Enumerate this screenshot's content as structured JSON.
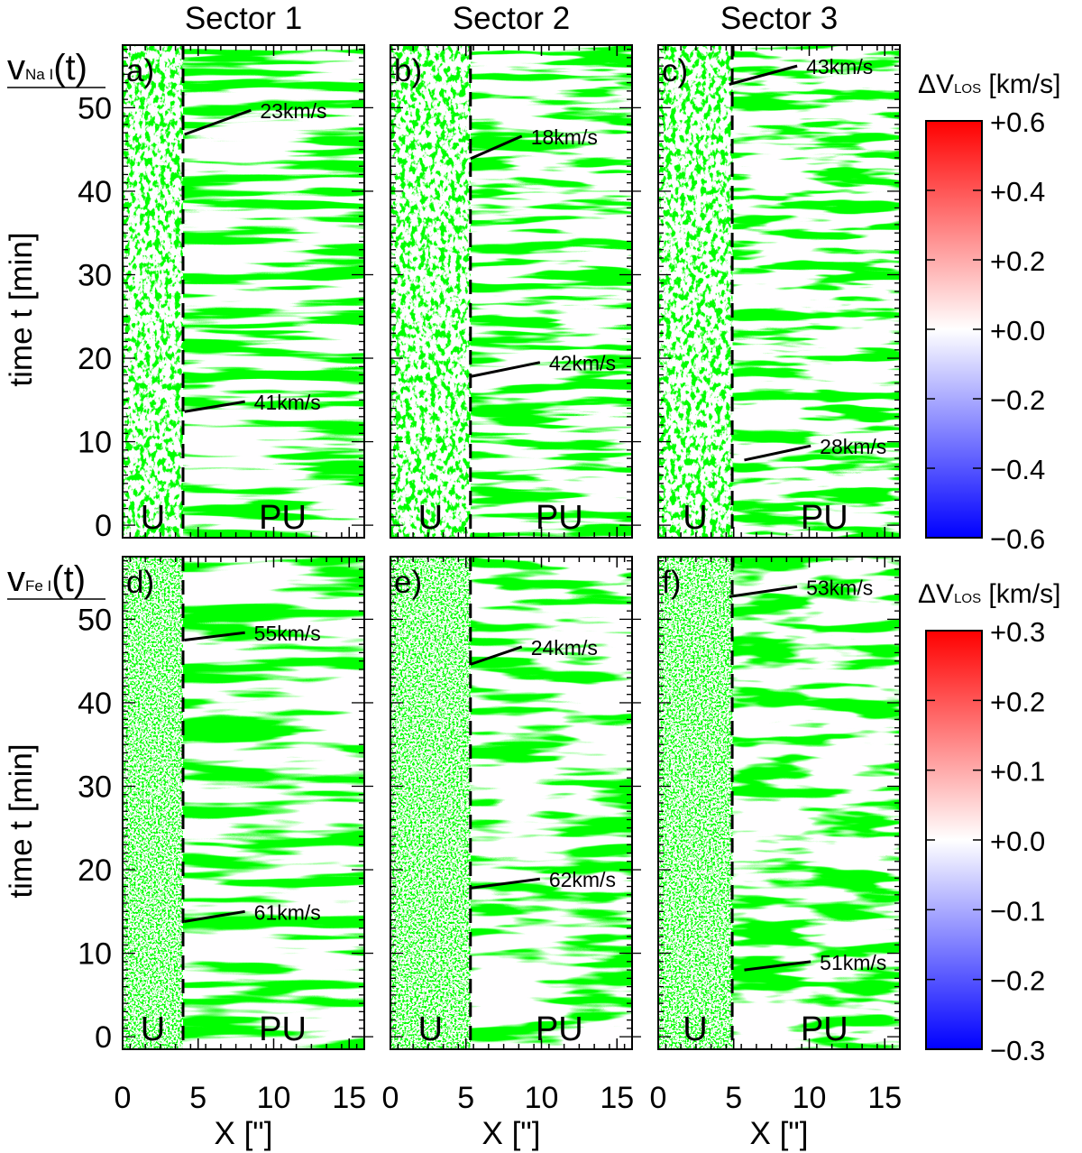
{
  "chart_data": {
    "type": "heatmap",
    "column_titles": [
      "Sector 1",
      "Sector 2",
      "Sector 3"
    ],
    "xlabel": "X [\"]",
    "ylabel": "time t [min]",
    "xlim": [
      0,
      16
    ],
    "ylim": [
      -1.5,
      57.5
    ],
    "x_ticks": [
      0,
      5,
      10,
      15
    ],
    "y_ticks": [
      0,
      10,
      20,
      30,
      40,
      50
    ],
    "region_labels": [
      "U",
      "PU"
    ],
    "rows": [
      {
        "row_label_main": "v",
        "row_label_sub": "Na I",
        "row_label_suffix": "(t)",
        "colorbar": {
          "title_prefix": "ΔV",
          "title_sub": "LOS",
          "title_suffix": " [km/s]",
          "range": [
            -0.6,
            0.6
          ],
          "tick_values": [
            0.6,
            0.4,
            0.2,
            0.0,
            -0.2,
            -0.4,
            -0.6
          ],
          "tick_labels": [
            "+0.6",
            "+0.4",
            "+0.2",
            "+0.0",
            "−0.2",
            "−0.4",
            "−0.6"
          ],
          "colors": [
            "#0000ff",
            "#ffffff",
            "#ff0000"
          ]
        },
        "panels": [
          {
            "letter": "a)",
            "boundary_x": 4.0,
            "annotations": [
              {
                "text": "23km/s",
                "x0": 4.1,
                "t0": 46.8,
                "x1": 8.5,
                "t1": 49.7
              },
              {
                "text": "41km/s",
                "x0": 4.1,
                "t0": 13.6,
                "x1": 8.1,
                "t1": 14.8
              }
            ]
          },
          {
            "letter": "b)",
            "boundary_x": 5.3,
            "annotations": [
              {
                "text": "18km/s",
                "x0": 5.3,
                "t0": 43.9,
                "x1": 8.7,
                "t1": 46.6
              },
              {
                "text": "42km/s",
                "x0": 5.3,
                "t0": 17.8,
                "x1": 9.9,
                "t1": 19.5
              }
            ]
          },
          {
            "letter": "c)",
            "boundary_x": 4.9,
            "annotations": [
              {
                "text": "43km/s",
                "x0": 4.7,
                "t0": 52.8,
                "x1": 9.2,
                "t1": 55.0
              },
              {
                "text": "28km/s",
                "x0": 5.7,
                "t0": 7.8,
                "x1": 10.1,
                "t1": 9.5
              }
            ]
          }
        ]
      },
      {
        "row_label_main": "v",
        "row_label_sub": "Fe I",
        "row_label_suffix": "(t)",
        "colorbar": {
          "title_prefix": "ΔV",
          "title_sub": "LOS",
          "title_suffix": " [km/s]",
          "range": [
            -0.3,
            0.3
          ],
          "tick_values": [
            0.3,
            0.2,
            0.1,
            0.0,
            -0.1,
            -0.2,
            -0.3
          ],
          "tick_labels": [
            "+0.3",
            "+0.2",
            "+0.1",
            "+0.0",
            "−0.1",
            "−0.2",
            "−0.3"
          ],
          "colors": [
            "#0000ff",
            "#ffffff",
            "#ff0000"
          ]
        },
        "panels": [
          {
            "letter": "d)",
            "boundary_x": 4.0,
            "annotations": [
              {
                "text": "55km/s",
                "x0": 4.1,
                "t0": 47.5,
                "x1": 8.1,
                "t1": 48.4
              },
              {
                "text": "61km/s",
                "x0": 4.1,
                "t0": 13.8,
                "x1": 8.1,
                "t1": 15.0
              }
            ]
          },
          {
            "letter": "e)",
            "boundary_x": 5.3,
            "annotations": [
              {
                "text": "24km/s",
                "x0": 5.3,
                "t0": 44.6,
                "x1": 8.7,
                "t1": 46.7
              },
              {
                "text": "62km/s",
                "x0": 5.3,
                "t0": 17.8,
                "x1": 9.9,
                "t1": 18.9
              }
            ]
          },
          {
            "letter": "f)",
            "boundary_x": 4.9,
            "annotations": [
              {
                "text": "53km/s",
                "x0": 4.7,
                "t0": 52.7,
                "x1": 9.2,
                "t1": 53.9
              },
              {
                "text": "51km/s",
                "x0": 5.7,
                "t0": 8.0,
                "x1": 10.1,
                "t1": 9.0
              }
            ]
          }
        ]
      }
    ]
  }
}
